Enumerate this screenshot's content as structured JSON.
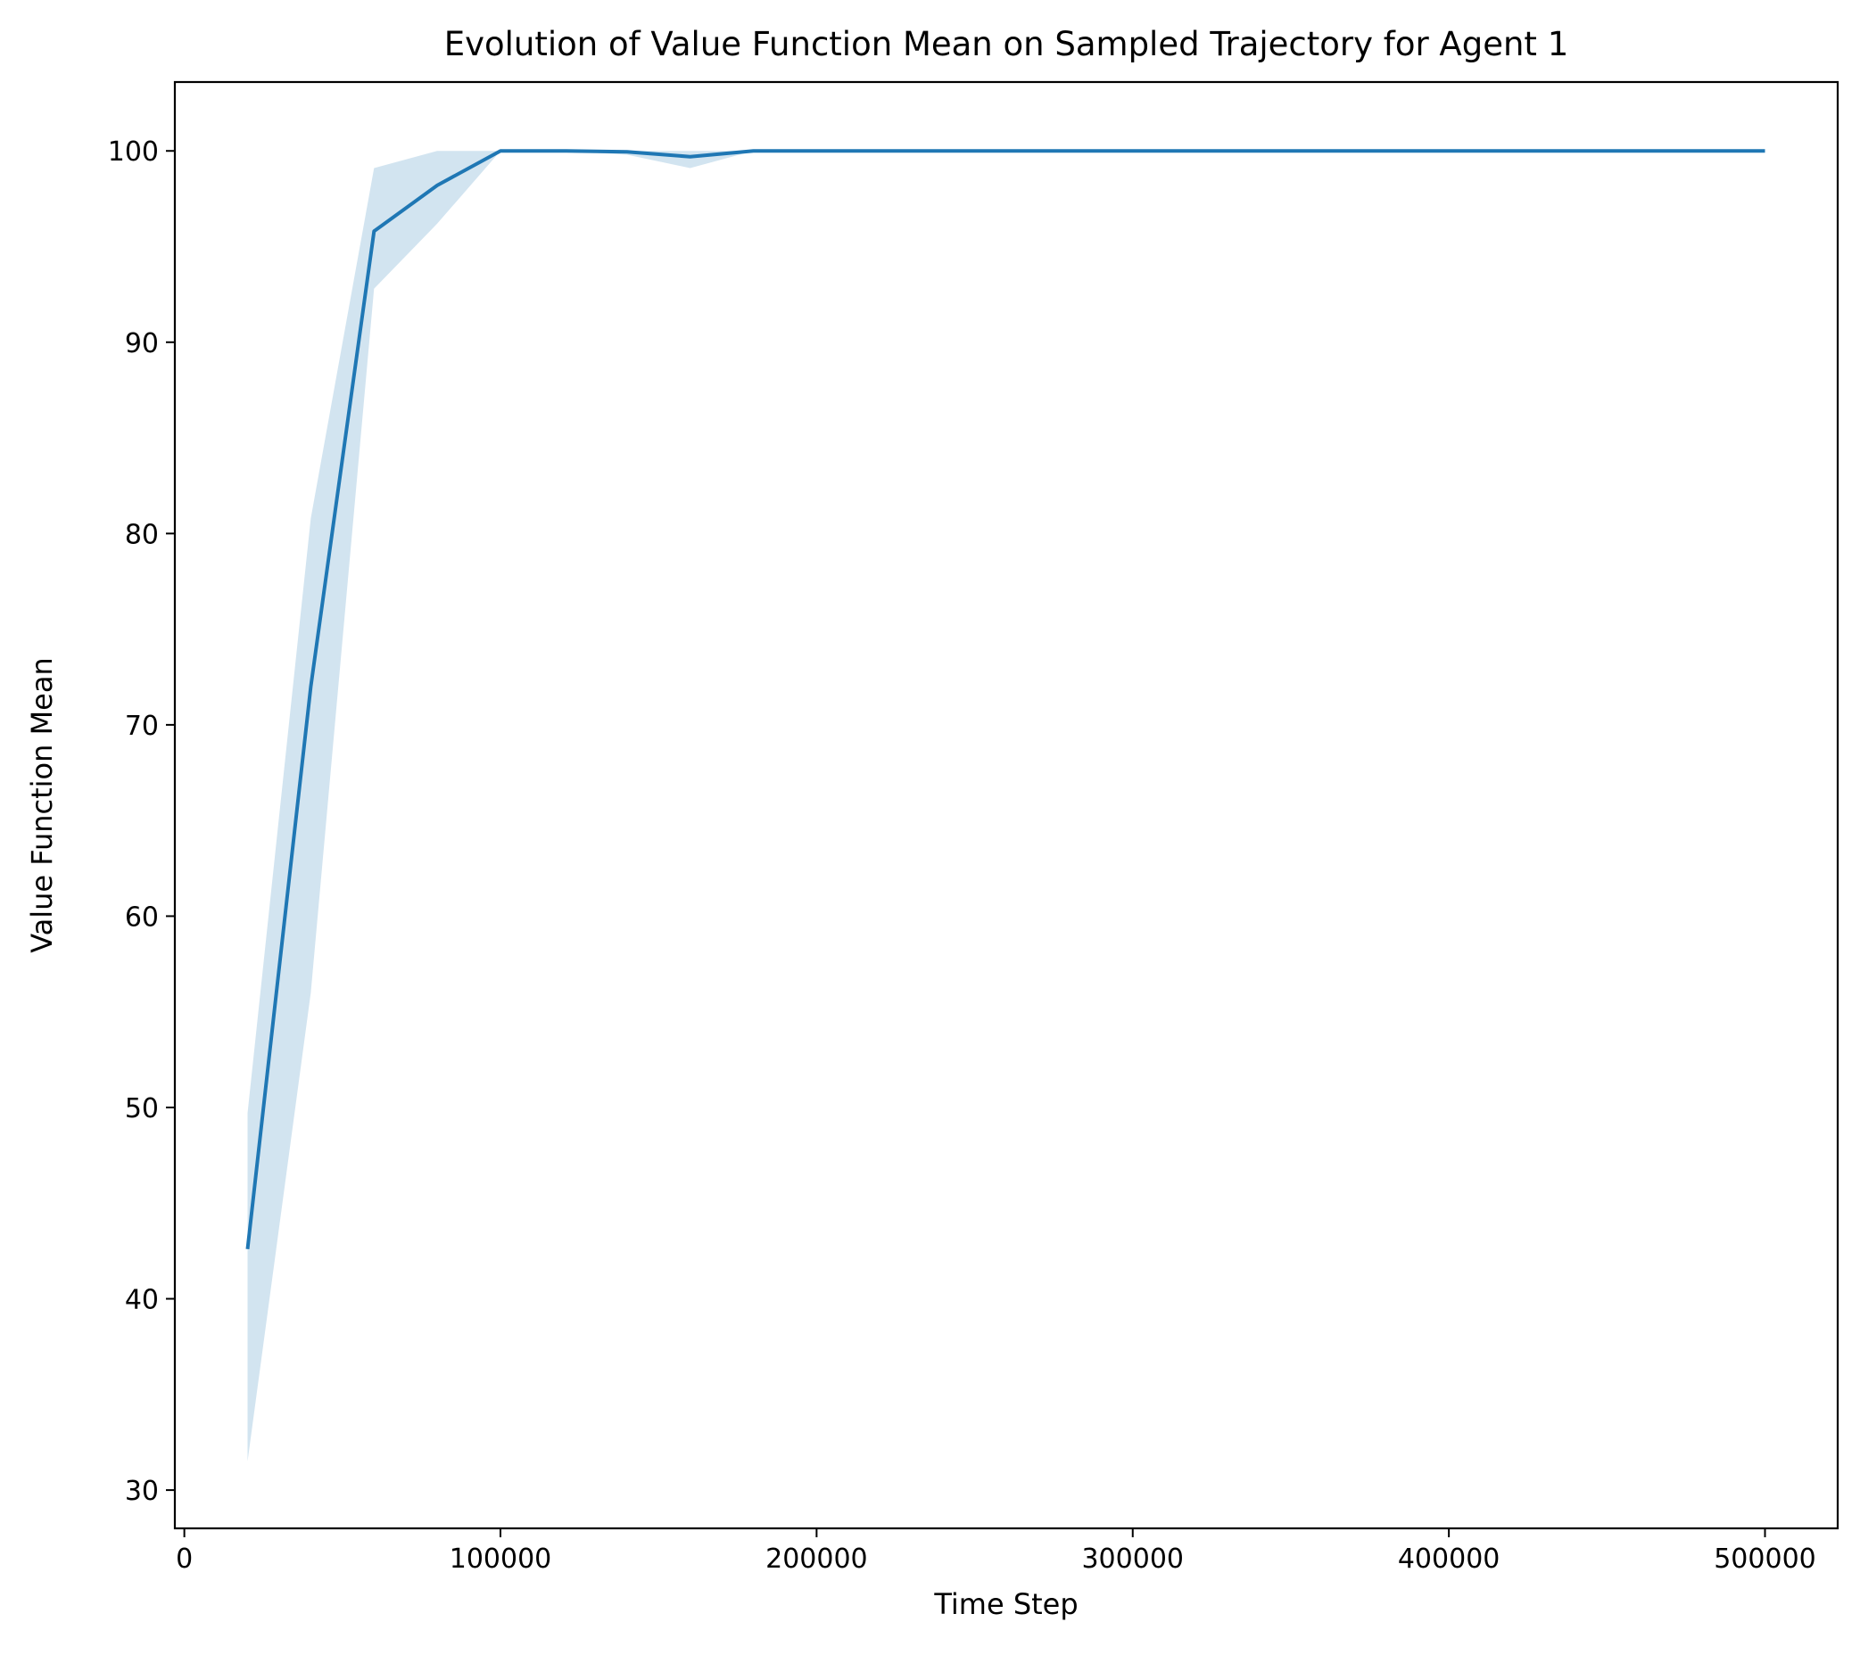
{
  "chart_data": {
    "type": "line",
    "title": "Evolution of Value Function Mean on Sampled Trajectory for Agent 1",
    "xlabel": "Time Step",
    "ylabel": "Value Function Mean",
    "xlim": [
      -3000,
      523000
    ],
    "ylim": [
      28,
      103.6
    ],
    "xticks": [
      0,
      100000,
      200000,
      300000,
      400000,
      500000
    ],
    "xtick_labels": [
      "0",
      "100000",
      "200000",
      "300000",
      "400000",
      "500000"
    ],
    "yticks": [
      30,
      40,
      50,
      60,
      70,
      80,
      90,
      100
    ],
    "ytick_labels": [
      "30",
      "40",
      "50",
      "60",
      "70",
      "80",
      "90",
      "100"
    ],
    "grid": false,
    "legend": "none",
    "colors": {
      "line": "#1f77b4",
      "band": "#1f77b4",
      "band_opacity": 0.2
    },
    "series": [
      {
        "x": [
          20000,
          40000,
          60000,
          80000,
          100000,
          120000,
          140000,
          160000,
          180000,
          200000,
          220000,
          240000,
          260000,
          280000,
          300000,
          320000,
          340000,
          360000,
          380000,
          400000,
          420000,
          440000,
          460000,
          480000,
          500000
        ],
        "y": [
          42.6,
          72.0,
          95.8,
          98.2,
          100.0,
          100.0,
          99.95,
          99.7,
          100.0,
          100.0,
          100.0,
          100.0,
          100.0,
          100.0,
          100.0,
          100.0,
          100.0,
          100.0,
          100.0,
          100.0,
          100.0,
          100.0,
          100.0,
          100.0,
          100.0
        ],
        "lower": [
          31.5,
          56.0,
          92.8,
          96.2,
          100.0,
          100.0,
          99.8,
          99.1,
          100.0,
          100.0,
          100.0,
          100.0,
          100.0,
          100.0,
          100.0,
          100.0,
          100.0,
          100.0,
          100.0,
          100.0,
          100.0,
          100.0,
          100.0,
          100.0,
          100.0
        ],
        "upper": [
          49.7,
          80.8,
          99.1,
          100.0,
          100.0,
          100.0,
          100.0,
          100.0,
          100.0,
          100.0,
          100.0,
          100.0,
          100.0,
          100.0,
          100.0,
          100.0,
          100.0,
          100.0,
          100.0,
          100.0,
          100.0,
          100.0,
          100.0,
          100.0,
          100.0
        ]
      }
    ]
  }
}
